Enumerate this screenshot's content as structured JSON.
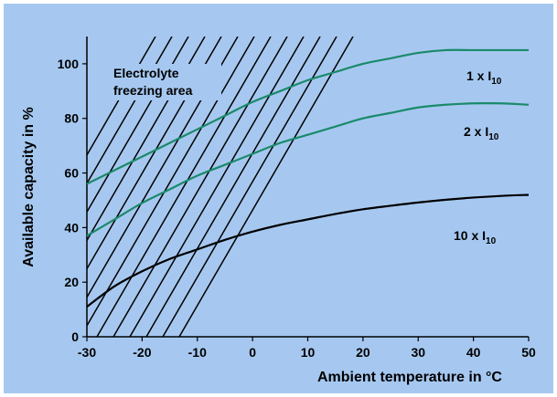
{
  "chart_data": {
    "type": "line",
    "xlabel": "Ambient  temperature in °C",
    "ylabel": "Available capacity in %",
    "xlim": [
      -30,
      50
    ],
    "ylim": [
      0,
      110
    ],
    "x_ticks": [
      "-30",
      "-20",
      "-10",
      "0",
      "10",
      "20",
      "30",
      "40",
      "50"
    ],
    "y_ticks": [
      "0",
      "20",
      "40",
      "60",
      "80",
      "100"
    ],
    "grid": false,
    "region_label": [
      "Electrolyte",
      "freezing area"
    ],
    "series": [
      {
        "name": "1 x I10",
        "label_main": "1 x I",
        "label_sub": "10",
        "color": "#1a8a6a",
        "x": [
          -30,
          -25,
          -20,
          -15,
          -10,
          -5,
          0,
          5,
          10,
          15,
          20,
          25,
          30,
          35,
          40,
          45,
          50
        ],
        "y": [
          56,
          61,
          66,
          71,
          76,
          81,
          86,
          90,
          94,
          97,
          100,
          102,
          104,
          105,
          105,
          105,
          105
        ]
      },
      {
        "name": "2 x I10",
        "label_main": "2 x I",
        "label_sub": "10",
        "color": "#1a8a6a",
        "x": [
          -30,
          -25,
          -20,
          -15,
          -10,
          -5,
          0,
          5,
          10,
          15,
          20,
          25,
          30,
          35,
          40,
          45,
          50
        ],
        "y": [
          37,
          43,
          49,
          54,
          59,
          63,
          67,
          71,
          74,
          77,
          80,
          82,
          84,
          85,
          85.5,
          85.5,
          85
        ]
      },
      {
        "name": "10 x I10",
        "label_main": "10 x I",
        "label_sub": "10",
        "color": "#000000",
        "x": [
          -30,
          -25,
          -20,
          -15,
          -10,
          -5,
          0,
          5,
          10,
          15,
          20,
          25,
          30,
          35,
          40,
          45,
          50
        ],
        "y": [
          11,
          18.5,
          24,
          28.5,
          32,
          35.5,
          38.5,
          41,
          43,
          45,
          46.7,
          48,
          49.2,
          50.2,
          51,
          51.6,
          52
        ]
      }
    ],
    "colors": {
      "background": "#a6c8f0",
      "axis": "#000000"
    }
  }
}
